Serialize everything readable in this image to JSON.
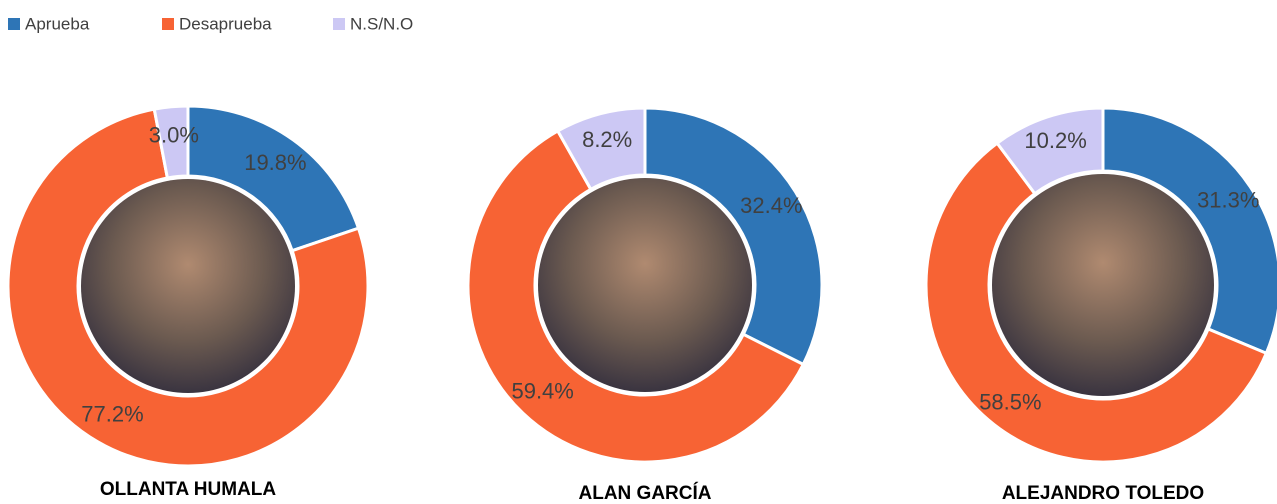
{
  "legend": {
    "labels": [
      "Aprueba",
      "Desaprueba",
      "N.S/N.O"
    ],
    "colors": [
      "#2e75b6",
      "#f76334",
      "#ccc8f4"
    ]
  },
  "chart_data": [
    {
      "type": "donut",
      "title": "OLLANTA HUMALA",
      "values": [
        19.8,
        77.2,
        3.0
      ],
      "value_labels": [
        "19.8%",
        "77.2%",
        "3.0%"
      ]
    },
    {
      "type": "donut",
      "title": "ALAN GARCÍA",
      "values": [
        32.4,
        59.4,
        8.2
      ],
      "value_labels": [
        "32.4%",
        "59.4%",
        "8.2%"
      ]
    },
    {
      "type": "donut",
      "title": "ALEJANDRO TOLEDO",
      "values": [
        31.3,
        58.5,
        10.2
      ],
      "value_labels": [
        "31.3%",
        "58.5%",
        "10.2%"
      ]
    }
  ]
}
